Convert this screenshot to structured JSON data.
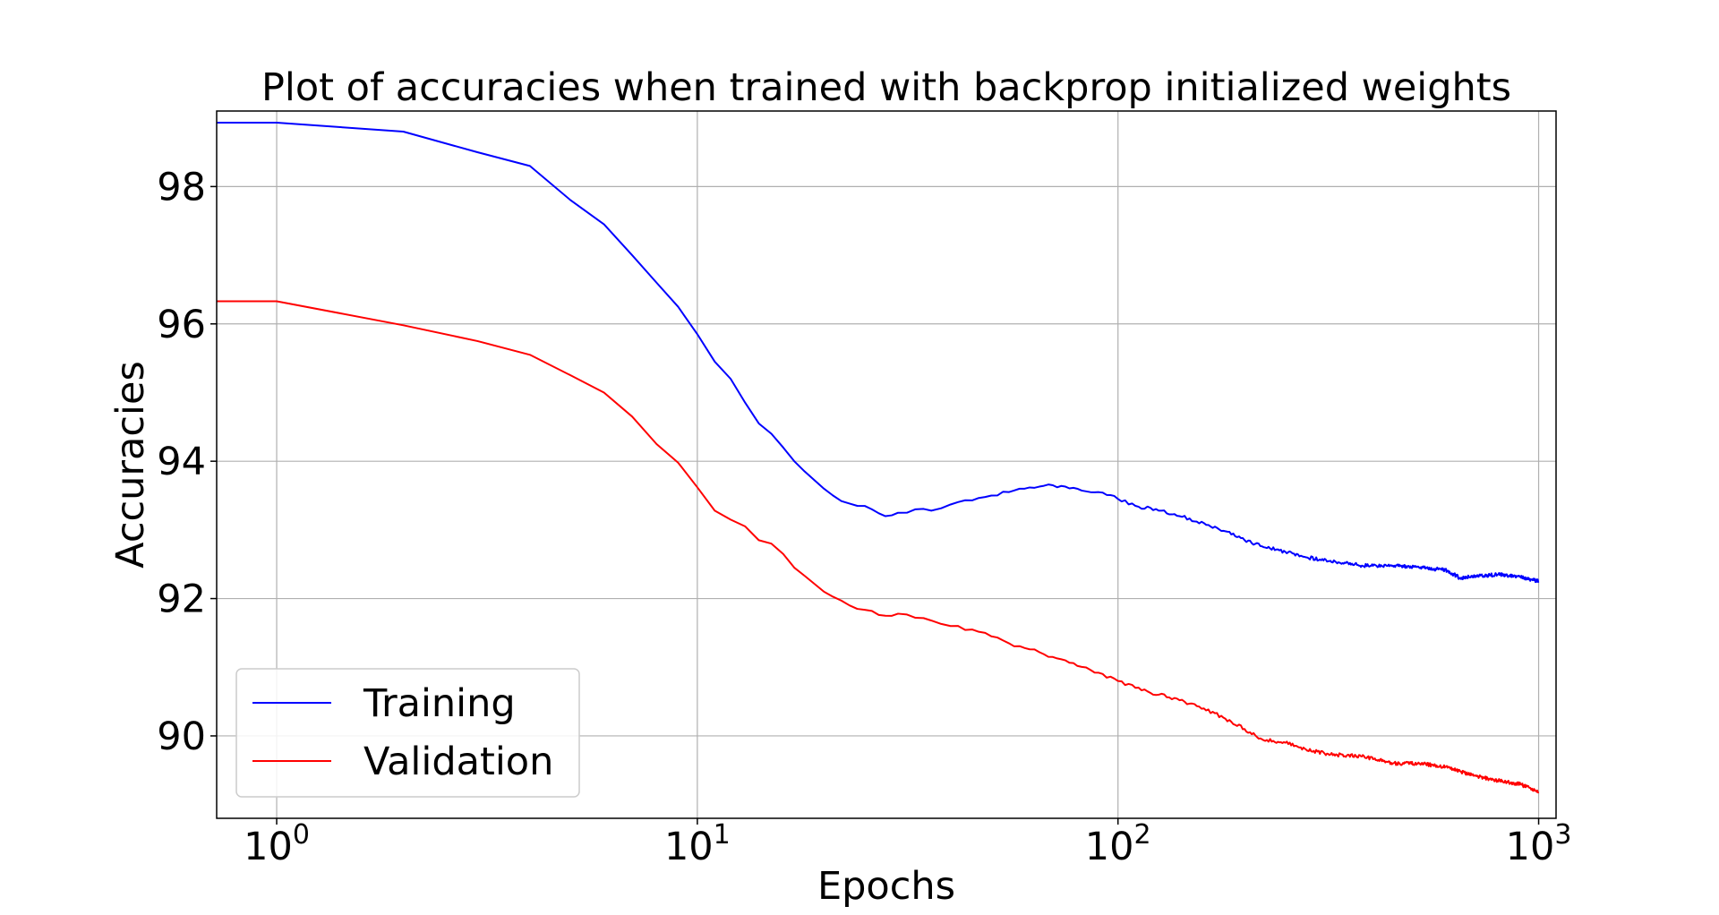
{
  "chart_data": {
    "type": "line",
    "title": "Plot of accuracies when trained with backprop initialized weights",
    "xlabel": "Epochs",
    "ylabel": "Accuracies",
    "x_scale": "log",
    "xlim": [
      0.72,
      1100
    ],
    "ylim": [
      88.8,
      99.1
    ],
    "x_ticks": [
      {
        "value": 1,
        "base": "10",
        "exp": "0"
      },
      {
        "value": 10,
        "base": "10",
        "exp": "1"
      },
      {
        "value": 100,
        "base": "10",
        "exp": "2"
      },
      {
        "value": 1000,
        "base": "10",
        "exp": "3"
      }
    ],
    "y_ticks": [
      {
        "value": 90,
        "label": "90"
      },
      {
        "value": 92,
        "label": "92"
      },
      {
        "value": 94,
        "label": "94"
      },
      {
        "value": 96,
        "label": "96"
      },
      {
        "value": 98,
        "label": "98"
      }
    ],
    "grid": true,
    "legend_position": "lower-left",
    "series": [
      {
        "name": "Training",
        "color": "#0000ff",
        "points": [
          [
            0.72,
            98.93
          ],
          [
            1,
            98.93
          ],
          [
            2,
            98.8
          ],
          [
            3,
            98.5
          ],
          [
            4,
            98.3
          ],
          [
            5,
            97.8
          ],
          [
            6,
            97.45
          ],
          [
            7,
            97.0
          ],
          [
            8,
            96.6
          ],
          [
            9,
            96.25
          ],
          [
            10,
            95.85
          ],
          [
            11,
            95.45
          ],
          [
            12,
            95.2
          ],
          [
            13,
            94.85
          ],
          [
            14,
            94.55
          ],
          [
            15,
            94.4
          ],
          [
            16,
            94.2
          ],
          [
            17,
            94.0
          ],
          [
            18,
            93.85
          ],
          [
            20,
            93.6
          ],
          [
            22,
            93.42
          ],
          [
            24,
            93.35
          ],
          [
            26,
            93.3
          ],
          [
            28,
            93.2
          ],
          [
            30,
            93.25
          ],
          [
            33,
            93.3
          ],
          [
            36,
            93.28
          ],
          [
            40,
            93.37
          ],
          [
            45,
            93.43
          ],
          [
            50,
            93.5
          ],
          [
            55,
            93.55
          ],
          [
            60,
            93.6
          ],
          [
            65,
            93.63
          ],
          [
            70,
            93.65
          ],
          [
            75,
            93.63
          ],
          [
            80,
            93.6
          ],
          [
            90,
            93.55
          ],
          [
            100,
            93.45
          ],
          [
            110,
            93.35
          ],
          [
            125,
            93.28
          ],
          [
            140,
            93.2
          ],
          [
            160,
            93.1
          ],
          [
            180,
            92.98
          ],
          [
            200,
            92.85
          ],
          [
            220,
            92.76
          ],
          [
            250,
            92.68
          ],
          [
            280,
            92.6
          ],
          [
            320,
            92.55
          ],
          [
            380,
            92.48
          ],
          [
            450,
            92.48
          ],
          [
            520,
            92.45
          ],
          [
            600,
            92.42
          ],
          [
            650,
            92.3
          ],
          [
            700,
            92.32
          ],
          [
            800,
            92.35
          ],
          [
            900,
            92.32
          ],
          [
            1000,
            92.25
          ]
        ]
      },
      {
        "name": "Validation",
        "color": "#ff0000",
        "points": [
          [
            0.72,
            96.33
          ],
          [
            1,
            96.33
          ],
          [
            2,
            95.98
          ],
          [
            3,
            95.75
          ],
          [
            4,
            95.55
          ],
          [
            5,
            95.25
          ],
          [
            6,
            95.0
          ],
          [
            7,
            94.65
          ],
          [
            8,
            94.25
          ],
          [
            9,
            93.98
          ],
          [
            10,
            93.62
          ],
          [
            11,
            93.28
          ],
          [
            12,
            93.15
          ],
          [
            13,
            93.05
          ],
          [
            14,
            92.85
          ],
          [
            15,
            92.8
          ],
          [
            16,
            92.65
          ],
          [
            17,
            92.45
          ],
          [
            18,
            92.33
          ],
          [
            20,
            92.1
          ],
          [
            22,
            91.97
          ],
          [
            24,
            91.85
          ],
          [
            26,
            91.82
          ],
          [
            28,
            91.75
          ],
          [
            30,
            91.78
          ],
          [
            33,
            91.72
          ],
          [
            36,
            91.68
          ],
          [
            40,
            91.6
          ],
          [
            45,
            91.55
          ],
          [
            50,
            91.45
          ],
          [
            55,
            91.35
          ],
          [
            60,
            91.28
          ],
          [
            65,
            91.22
          ],
          [
            70,
            91.15
          ],
          [
            75,
            91.1
          ],
          [
            80,
            91.02
          ],
          [
            90,
            90.92
          ],
          [
            100,
            90.8
          ],
          [
            110,
            90.7
          ],
          [
            125,
            90.6
          ],
          [
            140,
            90.52
          ],
          [
            160,
            90.4
          ],
          [
            180,
            90.25
          ],
          [
            200,
            90.1
          ],
          [
            220,
            89.95
          ],
          [
            250,
            89.9
          ],
          [
            280,
            89.8
          ],
          [
            320,
            89.73
          ],
          [
            380,
            89.7
          ],
          [
            450,
            89.6
          ],
          [
            520,
            89.6
          ],
          [
            600,
            89.55
          ],
          [
            700,
            89.42
          ],
          [
            800,
            89.35
          ],
          [
            900,
            89.3
          ],
          [
            1000,
            89.18
          ]
        ]
      }
    ]
  }
}
